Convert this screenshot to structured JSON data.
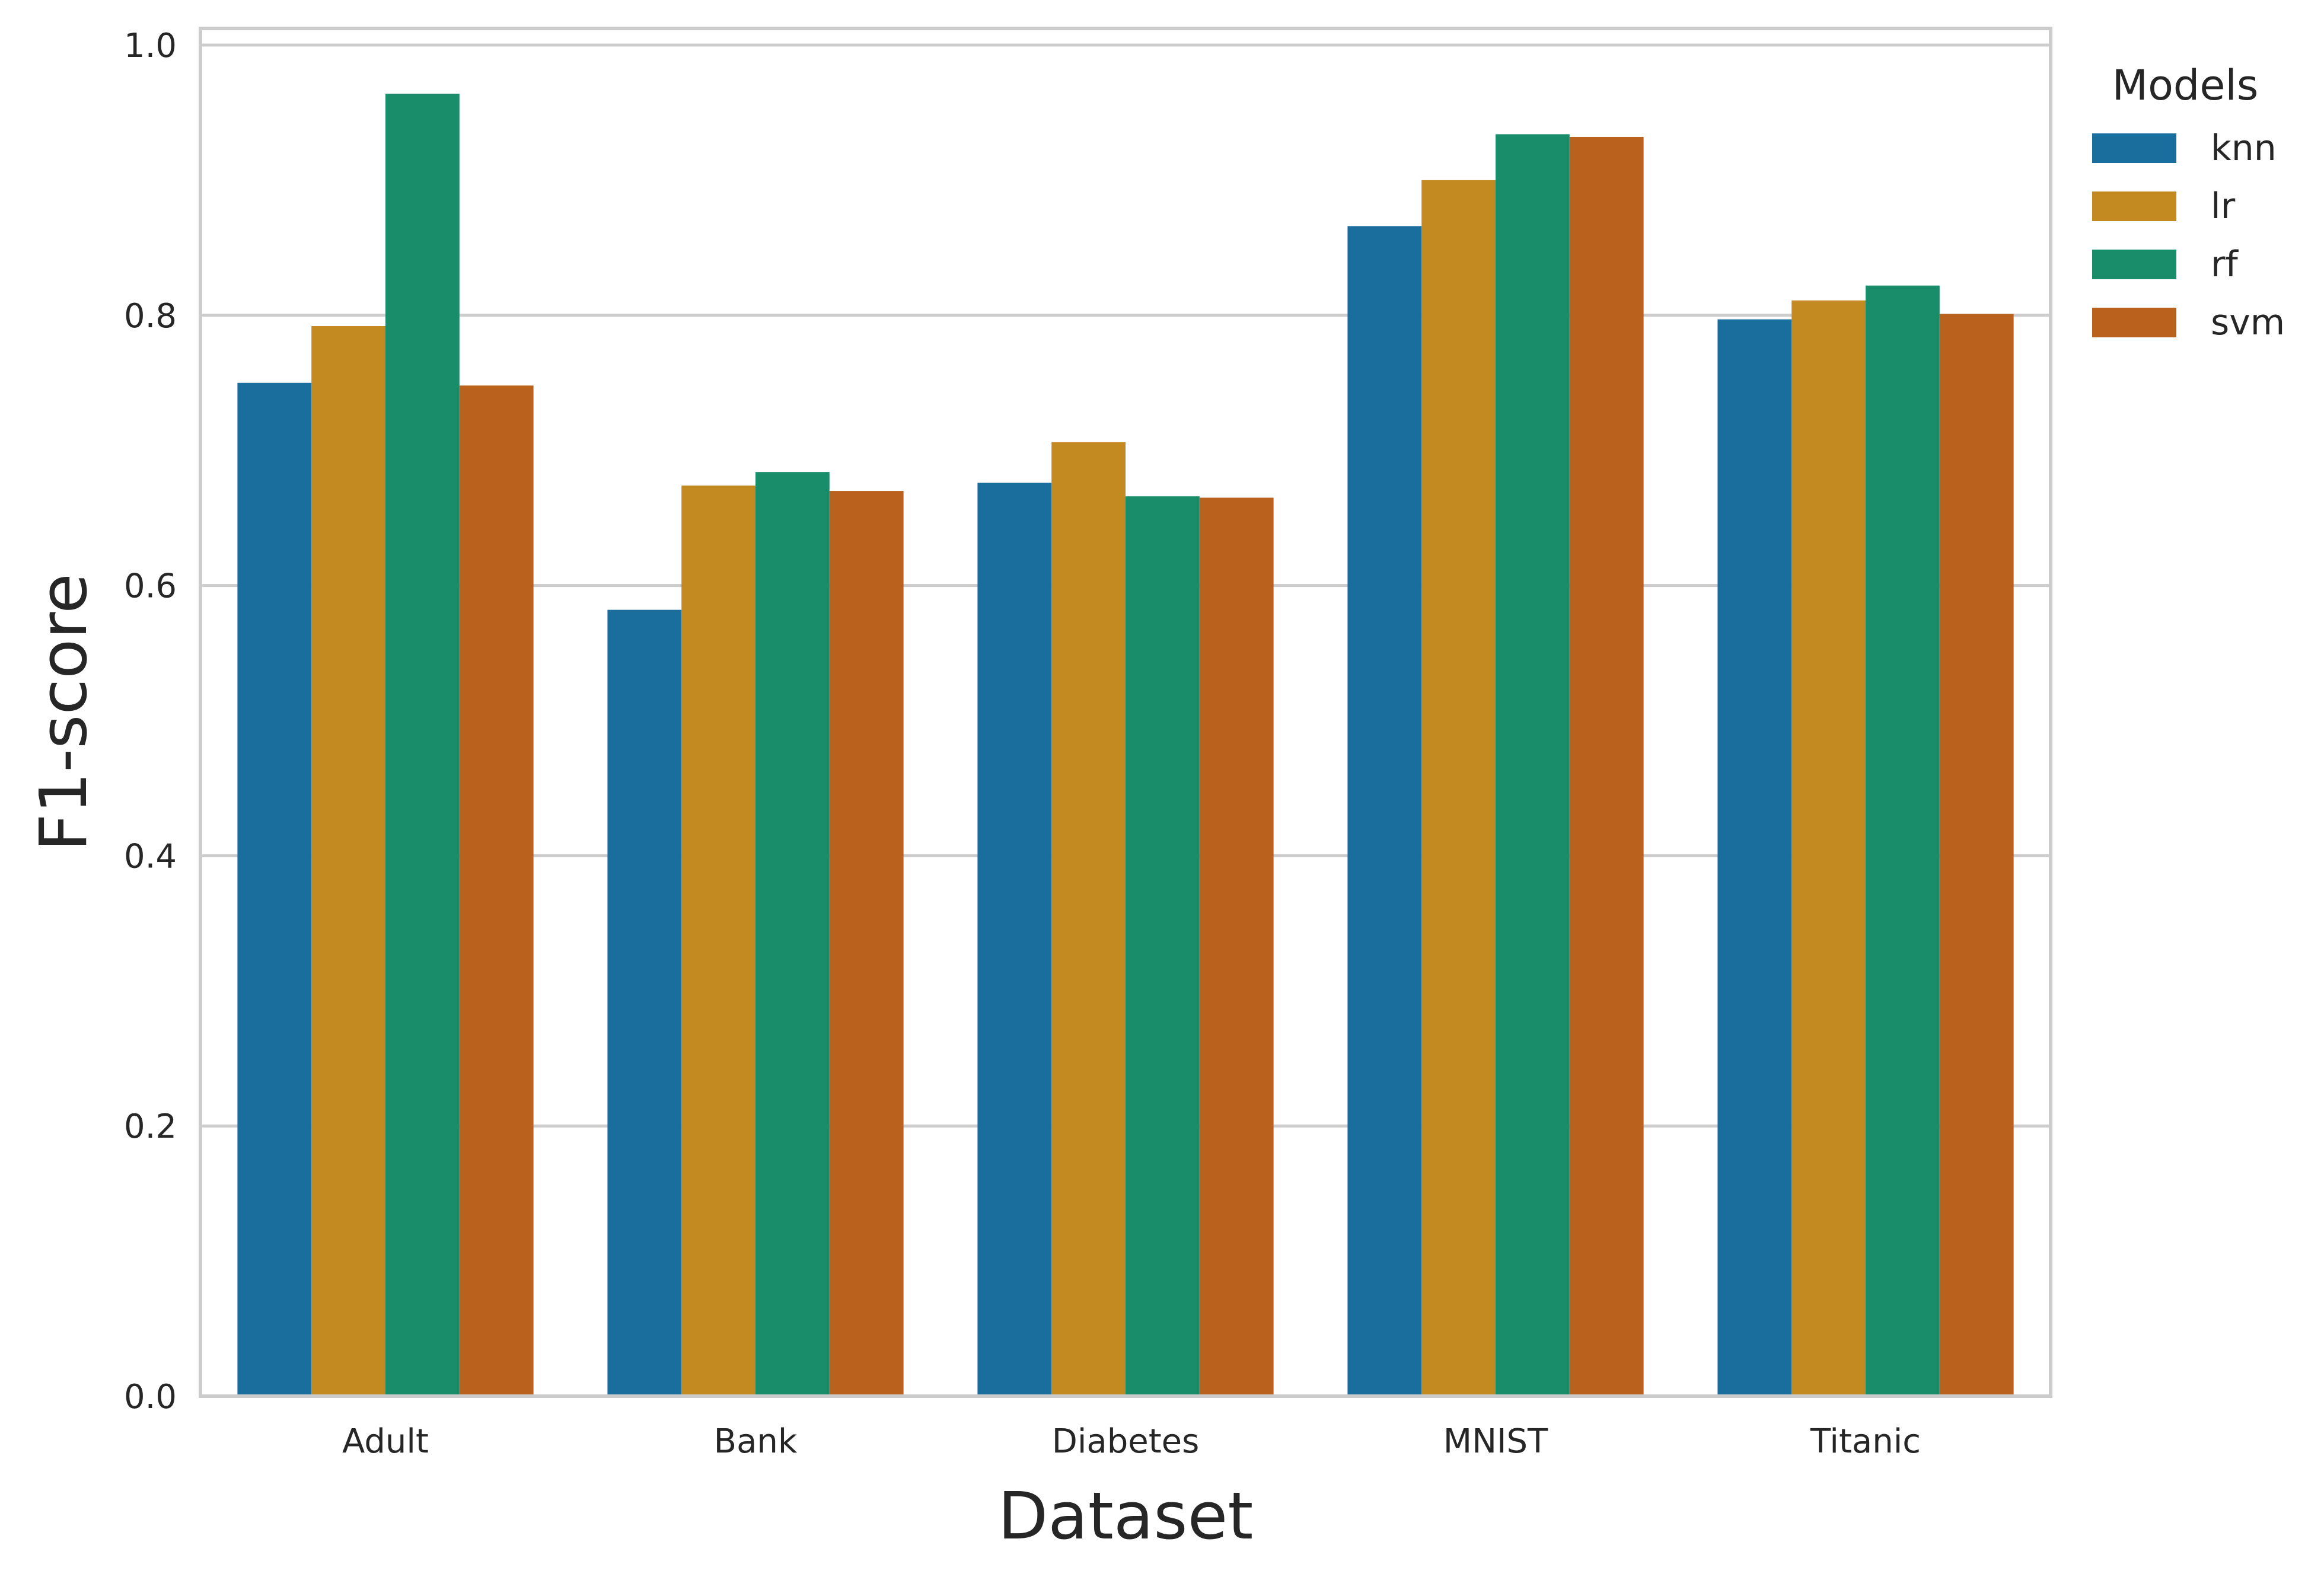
{
  "chart_data": {
    "type": "bar",
    "xlabel": "Dataset",
    "ylabel": "F1-score",
    "categories": [
      "Adult",
      "Bank",
      "Diabetes",
      "MNIST",
      "Titanic"
    ],
    "ylim": [
      0,
      1.0
    ],
    "yticks": [
      0.0,
      0.2,
      0.4,
      0.6,
      0.8,
      1.0
    ],
    "ytick_labels": [
      "0.0",
      "0.2",
      "0.4",
      "0.6",
      "0.8",
      "1.0"
    ],
    "grid": "horizontal",
    "legend": {
      "title": "Models",
      "placement": "outside-right-top"
    },
    "series": [
      {
        "name": "knn",
        "color": "#1a6e9e",
        "values": [
          0.75,
          0.582,
          0.676,
          0.866,
          0.797
        ]
      },
      {
        "name": "lr",
        "color": "#c48a22",
        "values": [
          0.792,
          0.674,
          0.706,
          0.9,
          0.811
        ]
      },
      {
        "name": "rf",
        "color": "#198c6a",
        "values": [
          0.964,
          0.684,
          0.666,
          0.934,
          0.822
        ]
      },
      {
        "name": "svm",
        "color": "#ba621d",
        "values": [
          0.748,
          0.67,
          0.665,
          0.932,
          0.801
        ]
      }
    ]
  }
}
